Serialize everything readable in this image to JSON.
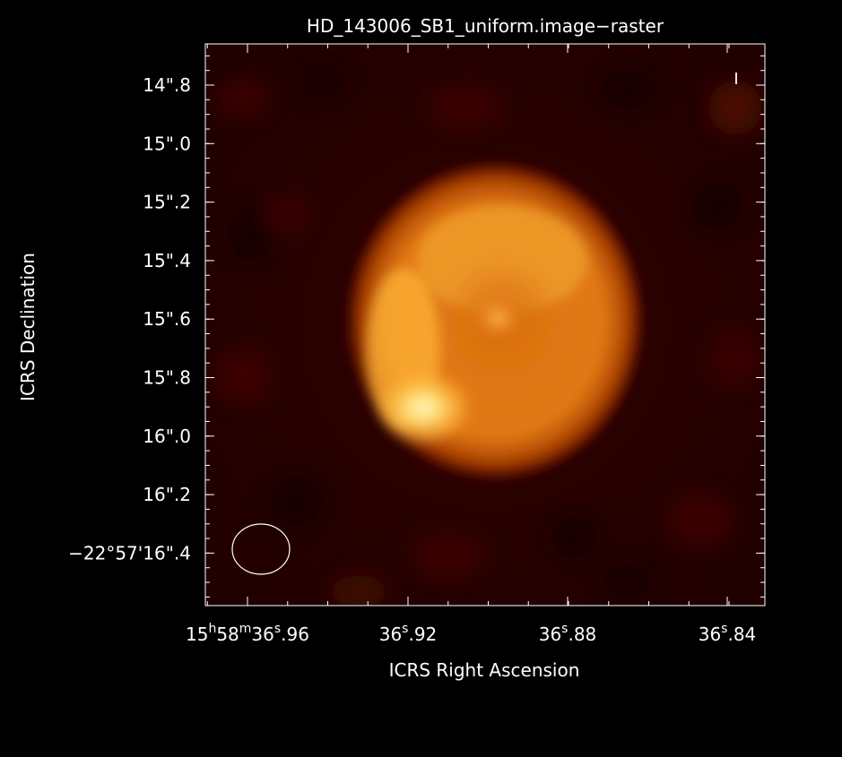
{
  "window": {
    "title": "HD_143006_SB1_uniform.image−raster",
    "stokes_label": "I"
  },
  "axes": {
    "x_label": "ICRS Right Ascension",
    "y_label": "ICRS Declination",
    "x_ticks": [
      {
        "h": "15",
        "m": "58",
        "s": "36",
        "frac": ".96",
        "full": true
      },
      {
        "s": "36",
        "frac": ".92"
      },
      {
        "s": "36",
        "frac": ".88"
      },
      {
        "s": "36",
        "frac": ".84"
      }
    ],
    "y_ticks": [
      {
        "prefix": "",
        "arcsec": "14",
        "frac": ".8"
      },
      {
        "prefix": "",
        "arcsec": "15",
        "frac": ".0"
      },
      {
        "prefix": "",
        "arcsec": "15",
        "frac": ".2"
      },
      {
        "prefix": "",
        "arcsec": "15",
        "frac": ".4"
      },
      {
        "prefix": "",
        "arcsec": "15",
        "frac": ".6"
      },
      {
        "prefix": "",
        "arcsec": "15",
        "frac": ".8"
      },
      {
        "prefix": "",
        "arcsec": "16",
        "frac": ".0"
      },
      {
        "prefix": "",
        "arcsec": "16",
        "frac": ".2"
      },
      {
        "prefix": "−22°57'",
        "arcsec": "16",
        "frac": ".4"
      }
    ]
  },
  "colors": {
    "background": "#000000",
    "frame": "#ffffff",
    "colormap": [
      "#2a0000",
      "#5a0c00",
      "#a23a00",
      "#e07812",
      "#ffb33a",
      "#ffe890"
    ]
  }
}
